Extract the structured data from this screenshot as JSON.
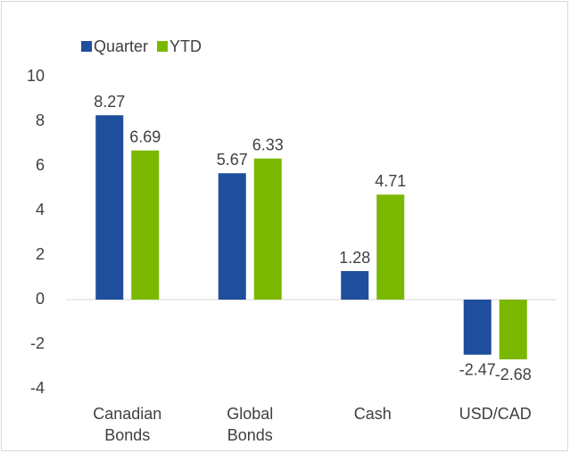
{
  "chart_data": {
    "type": "bar",
    "categories": [
      "Canadian Bonds",
      "Global Bonds",
      "Cash",
      "USD/CAD"
    ],
    "series": [
      {
        "name": "Quarter",
        "color": "#1f4e9c",
        "values": [
          8.27,
          5.67,
          1.28,
          -2.47
        ]
      },
      {
        "name": "YTD",
        "color": "#7ab800",
        "values": [
          6.69,
          6.33,
          4.71,
          -2.68
        ]
      }
    ],
    "ylim": [
      -4,
      10
    ],
    "yticks": [
      -4,
      -2,
      0,
      2,
      4,
      6,
      8,
      10
    ],
    "grid": false,
    "legend": "top-left"
  }
}
